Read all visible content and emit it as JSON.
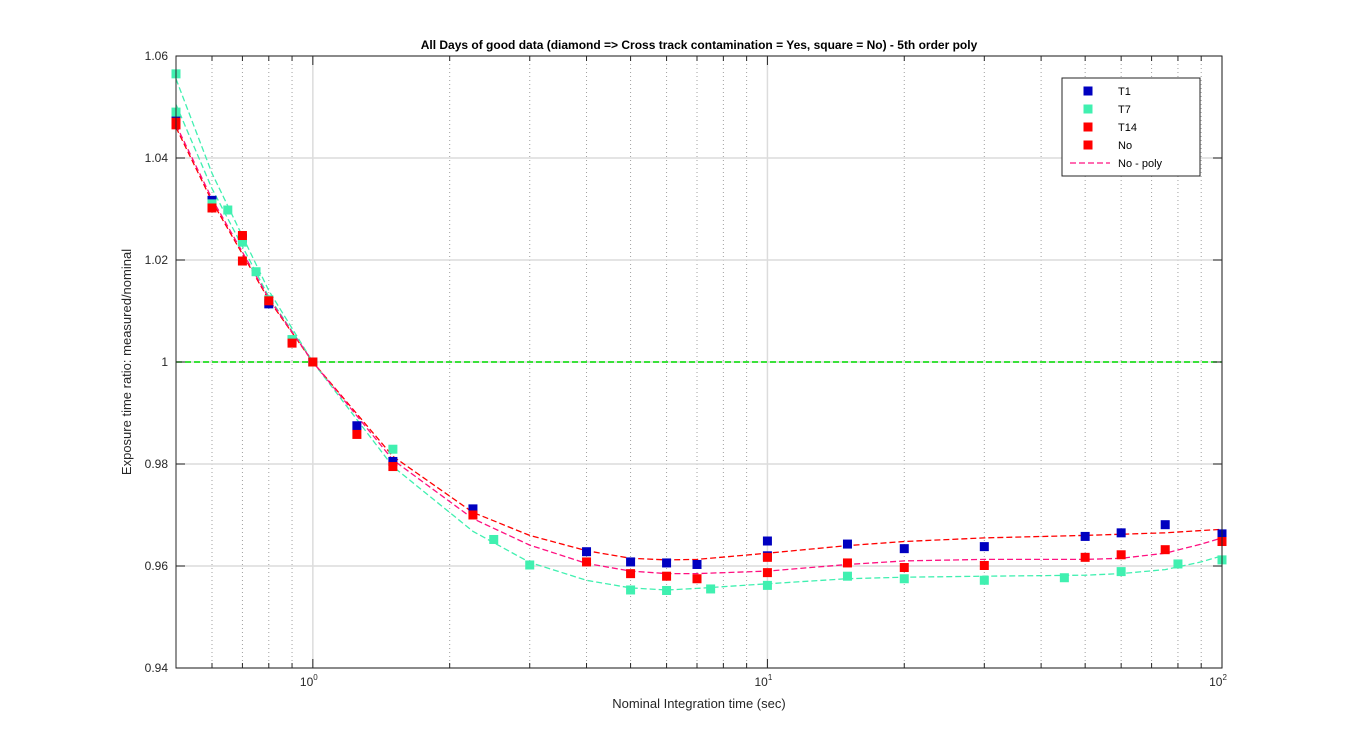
{
  "chart_data": {
    "type": "scatter",
    "title": "All Days of good data  (diamond => Cross track contamination = Yes, square = No) - 5th order poly",
    "xlabel": "Nominal Integration time (sec)",
    "ylabel": "Exposure time ratio: measured/nominal",
    "xscale": "log",
    "xlim": [
      0.5,
      100
    ],
    "ylim": [
      0.94,
      1.06
    ],
    "x_tick_labels": [
      {
        "base": "10",
        "exp": "0"
      },
      {
        "base": "10",
        "exp": "1"
      },
      {
        "base": "10",
        "exp": "2"
      }
    ],
    "y_ticks": [
      "0.94",
      "0.96",
      "0.98",
      "1",
      "1.02",
      "1.04",
      "1.06"
    ],
    "grid": true,
    "minor_grid": true,
    "legend_position": "top-right",
    "reference_line": {
      "y": 1.0,
      "color": "#00dd00"
    },
    "series": [
      {
        "name": "T1",
        "color": "#0000c0",
        "x": [
          0.5,
          0.6,
          0.7,
          0.8,
          0.9,
          1.0,
          1.25,
          1.5,
          2.25,
          4,
          5,
          6,
          7,
          10,
          10,
          15,
          20,
          30,
          50,
          60,
          75,
          100
        ],
        "y": [
          1.0475,
          1.0317,
          1.0243,
          1.0114,
          1.0043,
          1.0,
          0.9875,
          0.9805,
          0.9712,
          0.9628,
          0.9608,
          0.9606,
          0.9603,
          0.9649,
          0.962,
          0.9643,
          0.9634,
          0.9638,
          0.9658,
          0.9665,
          0.9681,
          0.9663
        ]
      },
      {
        "name": "T7",
        "color": "#40f0b0",
        "x": [
          0.5,
          0.5,
          0.6,
          0.65,
          0.7,
          0.75,
          0.8,
          0.9,
          1.0,
          1.5,
          2.5,
          3,
          5,
          6,
          7.5,
          10,
          15,
          20,
          30,
          45,
          60,
          80,
          100
        ],
        "y": [
          1.0565,
          1.049,
          1.031,
          1.0298,
          1.0235,
          1.0177,
          1.0122,
          1.0044,
          1.0,
          0.9829,
          0.9652,
          0.9602,
          0.9553,
          0.9552,
          0.9555,
          0.9562,
          0.958,
          0.9575,
          0.9572,
          0.9577,
          0.9589,
          0.9604,
          0.9612
        ]
      },
      {
        "name": "T14",
        "color": "#ff0000",
        "x": [
          0.5,
          0.6,
          0.7,
          0.7,
          0.8,
          0.9,
          1.0,
          1.25,
          1.5,
          2.25,
          4,
          5,
          6,
          7,
          10,
          10,
          15,
          20,
          30,
          50,
          60,
          75,
          100
        ],
        "y": [
          1.0465,
          1.0302,
          1.0248,
          1.0198,
          1.012,
          1.0037,
          1.0,
          0.9858,
          0.9795,
          0.97,
          0.9608,
          0.9585,
          0.958,
          0.9575,
          0.9587,
          0.9617,
          0.9606,
          0.9597,
          0.9601,
          0.9617,
          0.9622,
          0.9632,
          0.9648
        ]
      },
      {
        "name": "No",
        "color": "#ff0000",
        "x": [
          0.5
        ],
        "y": [
          1.047
        ]
      },
      {
        "name": "No - poly",
        "color": "#ff1080",
        "style": "dashed",
        "x": [
          0.5,
          0.6,
          0.8,
          1.0,
          1.5,
          2.25,
          3,
          4,
          5,
          6,
          7,
          10,
          15,
          20,
          30,
          50,
          60,
          75,
          90,
          100
        ],
        "y": [
          1.0465,
          1.032,
          1.0125,
          1.0,
          0.9808,
          0.9693,
          0.9641,
          0.9605,
          0.959,
          0.9585,
          0.9585,
          0.959,
          0.9603,
          0.961,
          0.9613,
          0.9613,
          0.9615,
          0.9625,
          0.9643,
          0.9655
        ]
      }
    ],
    "fit_lines": [
      {
        "color": "#ff0000",
        "x": [
          0.5,
          0.6,
          0.8,
          1.0,
          1.5,
          2.25,
          3,
          4,
          5,
          6,
          7,
          10,
          15,
          20,
          30,
          50,
          75,
          100
        ],
        "y": [
          1.046,
          1.0315,
          1.0122,
          1.0,
          0.9815,
          0.9705,
          0.966,
          0.963,
          0.9615,
          0.9612,
          0.9613,
          0.9625,
          0.964,
          0.9648,
          0.9655,
          0.966,
          0.9665,
          0.9672
        ]
      },
      {
        "color": "#40f0b0",
        "x": [
          0.5,
          0.6,
          0.8,
          1.0,
          1.5,
          2.25,
          3,
          4,
          5,
          6,
          7,
          10,
          15,
          20,
          30,
          50,
          60,
          75,
          90,
          100
        ],
        "y": [
          1.0555,
          1.037,
          1.014,
          1.0,
          0.9795,
          0.9668,
          0.9607,
          0.9572,
          0.9557,
          0.9553,
          0.9556,
          0.9565,
          0.9575,
          0.9578,
          0.958,
          0.9582,
          0.9585,
          0.9593,
          0.9608,
          0.962
        ]
      },
      {
        "color": "#40f0b0",
        "x": [
          0.5,
          0.6,
          0.8,
          1.0
        ],
        "y": [
          1.0505,
          1.034,
          1.0128,
          1.0
        ]
      }
    ]
  }
}
